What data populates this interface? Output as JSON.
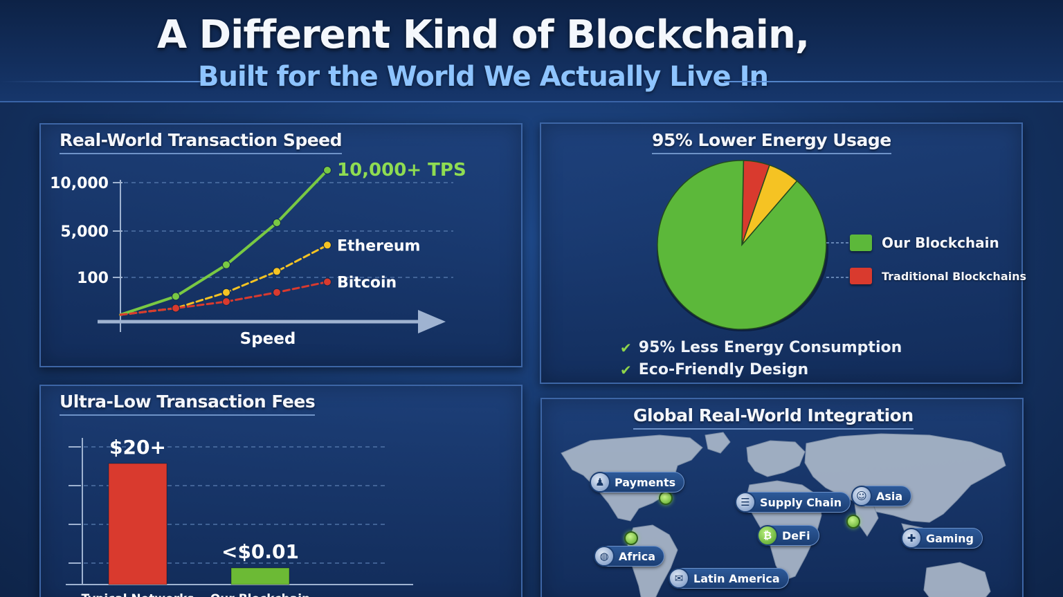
{
  "header": {
    "title": "A Different Kind of Blockchain,",
    "subtitle": "Built for the World We Actually Live In"
  },
  "colors": {
    "green": "#5cb83a",
    "yellow": "#f5c323",
    "red": "#d93a2e",
    "accent_blue": "#8ec4ff"
  },
  "speed_panel": {
    "title": "Real-World Transaction Speed"
  },
  "energy_panel": {
    "title": "95% Lower Energy Usage",
    "checks": [
      "95% Less Energy Consumption",
      "Eco-Friendly Design"
    ]
  },
  "fees_panel": {
    "title": "Ultra-Low Transaction Fees"
  },
  "map_panel": {
    "title": "Global Real-World Integration",
    "labels": [
      {
        "text": "Payments",
        "icon": "person-icon"
      },
      {
        "text": "Supply Chain",
        "icon": "list-icon"
      },
      {
        "text": "Asia",
        "icon": "user-icon"
      },
      {
        "text": "DeFi",
        "icon": "defi-icon"
      },
      {
        "text": "Gaming",
        "icon": "gamepad-icon"
      },
      {
        "text": "Africa",
        "icon": "globe-icon"
      },
      {
        "text": "Latin America",
        "icon": "mail-icon"
      }
    ]
  },
  "chart_data": [
    {
      "type": "line",
      "title": "Real-World Transaction Speed",
      "xlabel": "Speed",
      "ylabel": "",
      "y_ticks": [
        "10,000",
        "5,000",
        "100"
      ],
      "series": [
        {
          "name": "10,000+ TPS",
          "color": "#79c943",
          "values": [
            0,
            0.14,
            0.38,
            0.7,
            1.1
          ]
        },
        {
          "name": "Ethereum",
          "color": "#f5c323",
          "values": [
            0,
            0.05,
            0.17,
            0.33,
            0.53
          ]
        },
        {
          "name": "Bitcoin",
          "color": "#d93a2e",
          "values": [
            0,
            0.05,
            0.1,
            0.17,
            0.25
          ]
        }
      ],
      "grid": true
    },
    {
      "type": "pie",
      "title": "95% Lower Energy Usage",
      "slices": [
        {
          "name": "Our Blockchain",
          "value": 89,
          "color": "#5cb83a",
          "in_legend": true
        },
        {
          "name": "Traditional Blockchains",
          "value": 5,
          "color": "#d93a2e",
          "in_legend": true
        },
        {
          "name": "",
          "value": 6,
          "color": "#f5c323",
          "in_legend": false
        }
      ],
      "legend": "right"
    },
    {
      "type": "bar",
      "title": "Ultra-Low Transaction Fees",
      "categories": [
        "Typical Networks",
        "Our Blockchain"
      ],
      "values": [
        20,
        0.01
      ],
      "value_labels": [
        "$20+",
        "<$0.01"
      ],
      "colors": [
        "#d93a2e",
        "#6cba35"
      ],
      "ylim": [
        0,
        22
      ],
      "grid": true
    }
  ]
}
